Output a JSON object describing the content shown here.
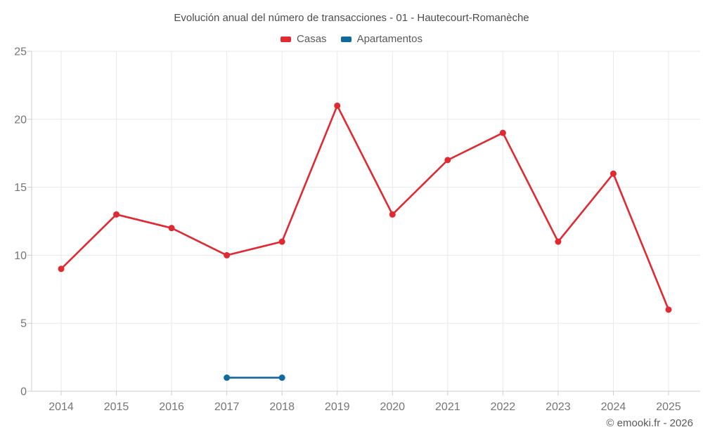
{
  "title": "Evolución anual del número de transacciones - 01 - Hautecourt-Romanèche",
  "legend": {
    "items": [
      {
        "label": "Casas",
        "color": "#e12931"
      },
      {
        "label": "Apartamentos",
        "color": "#106aa0"
      }
    ]
  },
  "footer": {
    "copyright": "© emooki.fr - 2026"
  },
  "colors": {
    "grid": "#e9e9e9",
    "axis_border": "#cccccc",
    "tick_text": "#757575",
    "casas": "#e12931",
    "apartamentos": "#106aa0"
  },
  "chart_data": {
    "type": "line",
    "title": "Evolución anual del número de transacciones - 01 - Hautecourt-Romanèche",
    "x": [
      2014,
      2015,
      2016,
      2017,
      2018,
      2019,
      2020,
      2021,
      2022,
      2023,
      2024,
      2025
    ],
    "series": [
      {
        "name": "Casas",
        "color": "#e12931",
        "values": [
          9,
          13,
          12,
          10,
          11,
          21,
          13,
          17,
          19,
          11,
          16,
          6
        ]
      },
      {
        "name": "Apartamentos",
        "color": "#106aa0",
        "values": [
          null,
          null,
          null,
          1,
          1,
          null,
          null,
          null,
          null,
          null,
          null,
          null
        ]
      }
    ],
    "xlabel": "",
    "ylabel": "",
    "ylim": [
      0,
      25
    ],
    "yticks": [
      0,
      5,
      10,
      15,
      20,
      25
    ],
    "grid": true,
    "legend_position": "top",
    "point_style": "circle",
    "annotations": []
  }
}
